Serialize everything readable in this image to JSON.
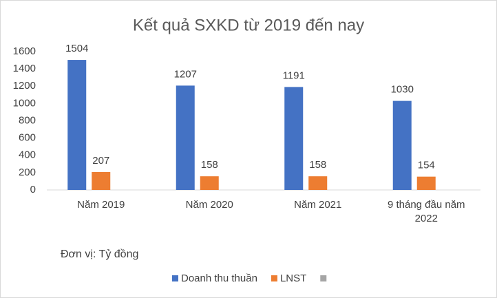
{
  "chart_data": {
    "type": "bar",
    "title": "Kết quả SXKD từ 2019 đến nay",
    "categories": [
      "Năm 2019",
      "Năm 2020",
      "Năm 2021",
      "9 tháng đầu năm 2022"
    ],
    "series": [
      {
        "name": "Doanh thu thuần",
        "color": "#4472c4",
        "values": [
          1504,
          1207,
          1191,
          1030
        ]
      },
      {
        "name": "LNST",
        "color": "#ed7d31",
        "values": [
          207,
          158,
          158,
          154
        ]
      },
      {
        "color": "#a5a5a5",
        "values": [
          null,
          null,
          null,
          null
        ]
      }
    ],
    "ylim": [
      0,
      1600
    ],
    "yticks": [
      0,
      200,
      400,
      600,
      800,
      1000,
      1200,
      1400,
      1600
    ],
    "grid": false,
    "legend": "bottom",
    "annotation": "Đơn vị: Tỷ đồng"
  }
}
